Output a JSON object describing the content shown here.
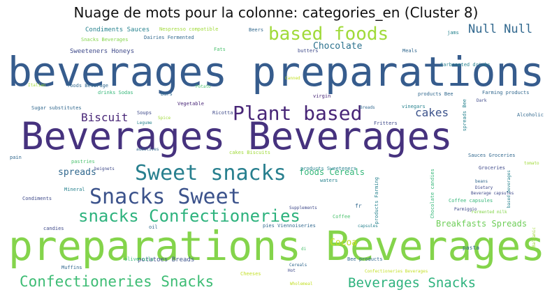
{
  "title": "Nuage de mots pour la colonne: categories_en (Cluster 8)",
  "palette": {
    "dark_purple": "#46327e",
    "purple": "#482677",
    "blue": "#365c8d",
    "teal_blue": "#277f8e",
    "teal": "#1fa187",
    "green": "#4ac16d",
    "light_green": "#84d44b",
    "yellow_green": "#a0da39",
    "yellow": "#d8e219"
  },
  "words": [
    {
      "text": "beverages preparations",
      "color": "#365c8d"
    },
    {
      "text": "Beverages Beverages",
      "color": "#46327e"
    },
    {
      "text": "preparations Beverages",
      "color": "#84d44b"
    },
    {
      "text": "Plant based",
      "color": "#482677"
    },
    {
      "text": "Sweet snacks",
      "color": "#277f8e"
    },
    {
      "text": "Snacks Sweet",
      "color": "#3b528b"
    },
    {
      "text": "snacks Confectioneries",
      "color": "#2db27d"
    },
    {
      "text": "Confectioneries Snacks",
      "color": "#3dbc74"
    },
    {
      "text": "based foods",
      "color": "#a0da39"
    },
    {
      "text": "Beverages Snacks",
      "color": "#2db27d"
    },
    {
      "text": "Null Null",
      "color": "#31688e"
    },
    {
      "text": "Biscuit",
      "color": "#482677"
    },
    {
      "text": "cakes",
      "color": "#3b528b"
    },
    {
      "text": "Chocolate",
      "color": "#2c728e"
    },
    {
      "text": "Cocoa",
      "color": "#c2df23"
    },
    {
      "text": "Breakfasts Spreads",
      "color": "#6ece58"
    },
    {
      "text": "spreads",
      "color": "#31688e"
    },
    {
      "text": "foods Cereals",
      "color": "#35b779"
    },
    {
      "text": "potatoes Breads",
      "color": "#3b528b"
    },
    {
      "text": "Condiments Sauces",
      "color": "#26828e"
    },
    {
      "text": "Sweeteners Honeys",
      "color": "#3e4989"
    },
    {
      "text": "Nespresso compatible",
      "color": "#a0da39"
    },
    {
      "text": "Snacks Beverages",
      "color": "#84d44b"
    },
    {
      "text": "Dairies Fermented",
      "color": "#31688e"
    },
    {
      "text": "Beers",
      "color": "#31688e"
    },
    {
      "text": "Fats",
      "color": "#4ac16d"
    },
    {
      "text": "Meals",
      "color": "#31688e"
    },
    {
      "text": "jams",
      "color": "#26828e"
    },
    {
      "text": "butters",
      "color": "#3e4989"
    },
    {
      "text": "Carbonated drinks",
      "color": "#26828e"
    },
    {
      "text": "foods Beverage",
      "color": "#31688e"
    },
    {
      "text": "drinks Sodas",
      "color": "#35b779"
    },
    {
      "text": "Sugar substitutes",
      "color": "#31688e"
    },
    {
      "text": "Italian",
      "color": "#a0da39"
    },
    {
      "text": "Bars",
      "color": "#31688e"
    },
    {
      "text": "Soups",
      "color": "#3e4989"
    },
    {
      "text": "Spice",
      "color": "#a0da39"
    },
    {
      "text": "Vegetable",
      "color": "#482677"
    },
    {
      "text": "Ricotta",
      "color": "#3e4989"
    },
    {
      "text": "Legume",
      "color": "#26828e"
    },
    {
      "text": "Potato",
      "color": "#4ac16d"
    },
    {
      "text": "virgin",
      "color": "#482677"
    },
    {
      "text": "Breads",
      "color": "#31688e"
    },
    {
      "text": "Canned",
      "color": "#c2df23"
    },
    {
      "text": "Fritters",
      "color": "#3e4989"
    },
    {
      "text": "products Bee",
      "color": "#31688e"
    },
    {
      "text": "vinegars",
      "color": "#26828e"
    },
    {
      "text": "Farming products",
      "color": "#31688e"
    },
    {
      "text": "Dark",
      "color": "#3e4989"
    },
    {
      "text": "Alcoholic",
      "color": "#31688e"
    },
    {
      "text": "spreads Bee",
      "color": "#26828e"
    },
    {
      "text": "Sauces Groceries",
      "color": "#31688e"
    },
    {
      "text": "Groceries",
      "color": "#3e4989"
    },
    {
      "text": "cakes Biscuits",
      "color": "#a0da39"
    },
    {
      "text": "additives",
      "color": "#31688e"
    },
    {
      "text": "pastries",
      "color": "#4ac16d"
    },
    {
      "text": "beignets",
      "color": "#3e4989"
    },
    {
      "text": "pain",
      "color": "#31688e"
    },
    {
      "text": "Mineral",
      "color": "#26828e"
    },
    {
      "text": "Condiments",
      "color": "#3e4989"
    },
    {
      "text": "candies",
      "color": "#3e4989"
    },
    {
      "text": "products Sweeteners",
      "color": "#26828e"
    },
    {
      "text": "waters",
      "color": "#26828e"
    },
    {
      "text": "Supplements",
      "color": "#3e4989"
    },
    {
      "text": "fr",
      "color": "#31688e"
    },
    {
      "text": "Coffee",
      "color": "#4ac16d"
    },
    {
      "text": "Coffee capsules",
      "color": "#35b779"
    },
    {
      "text": "beans",
      "color": "#31688e"
    },
    {
      "text": "Dietary",
      "color": "#3e4989"
    },
    {
      "text": "Chocolate candies",
      "color": "#35b779"
    },
    {
      "text": "based beverages",
      "color": "#26828e"
    },
    {
      "text": "Fermented milk",
      "color": "#84d44b"
    },
    {
      "text": "products Farming",
      "color": "#26828e"
    },
    {
      "text": "pies Viennoiseries",
      "color": "#31688e"
    },
    {
      "text": "capsules",
      "color": "#26828e"
    },
    {
      "text": "oil",
      "color": "#31688e"
    },
    {
      "text": "di",
      "color": "#4ac16d"
    },
    {
      "text": "olive oils",
      "color": "#35b779"
    },
    {
      "text": "Muffins",
      "color": "#31688e"
    },
    {
      "text": "Cheeses",
      "color": "#c2df23"
    },
    {
      "text": "Cereals",
      "color": "#31688e"
    },
    {
      "text": "Hot",
      "color": "#3e4989"
    },
    {
      "text": "Bee products",
      "color": "#31688e"
    },
    {
      "text": "pasta",
      "color": "#31688e"
    },
    {
      "text": "Confectioneries Beverages",
      "color": "#c2df23"
    },
    {
      "text": "Wholemeal",
      "color": "#c2df23"
    },
    {
      "text": "Balsamic",
      "color": "#a0da39"
    },
    {
      "text": "tomato",
      "color": "#a0da39"
    },
    {
      "text": "Parmiggio",
      "color": "#3e4989"
    },
    {
      "text": "Beverage capsules",
      "color": "#3e4989"
    }
  ]
}
